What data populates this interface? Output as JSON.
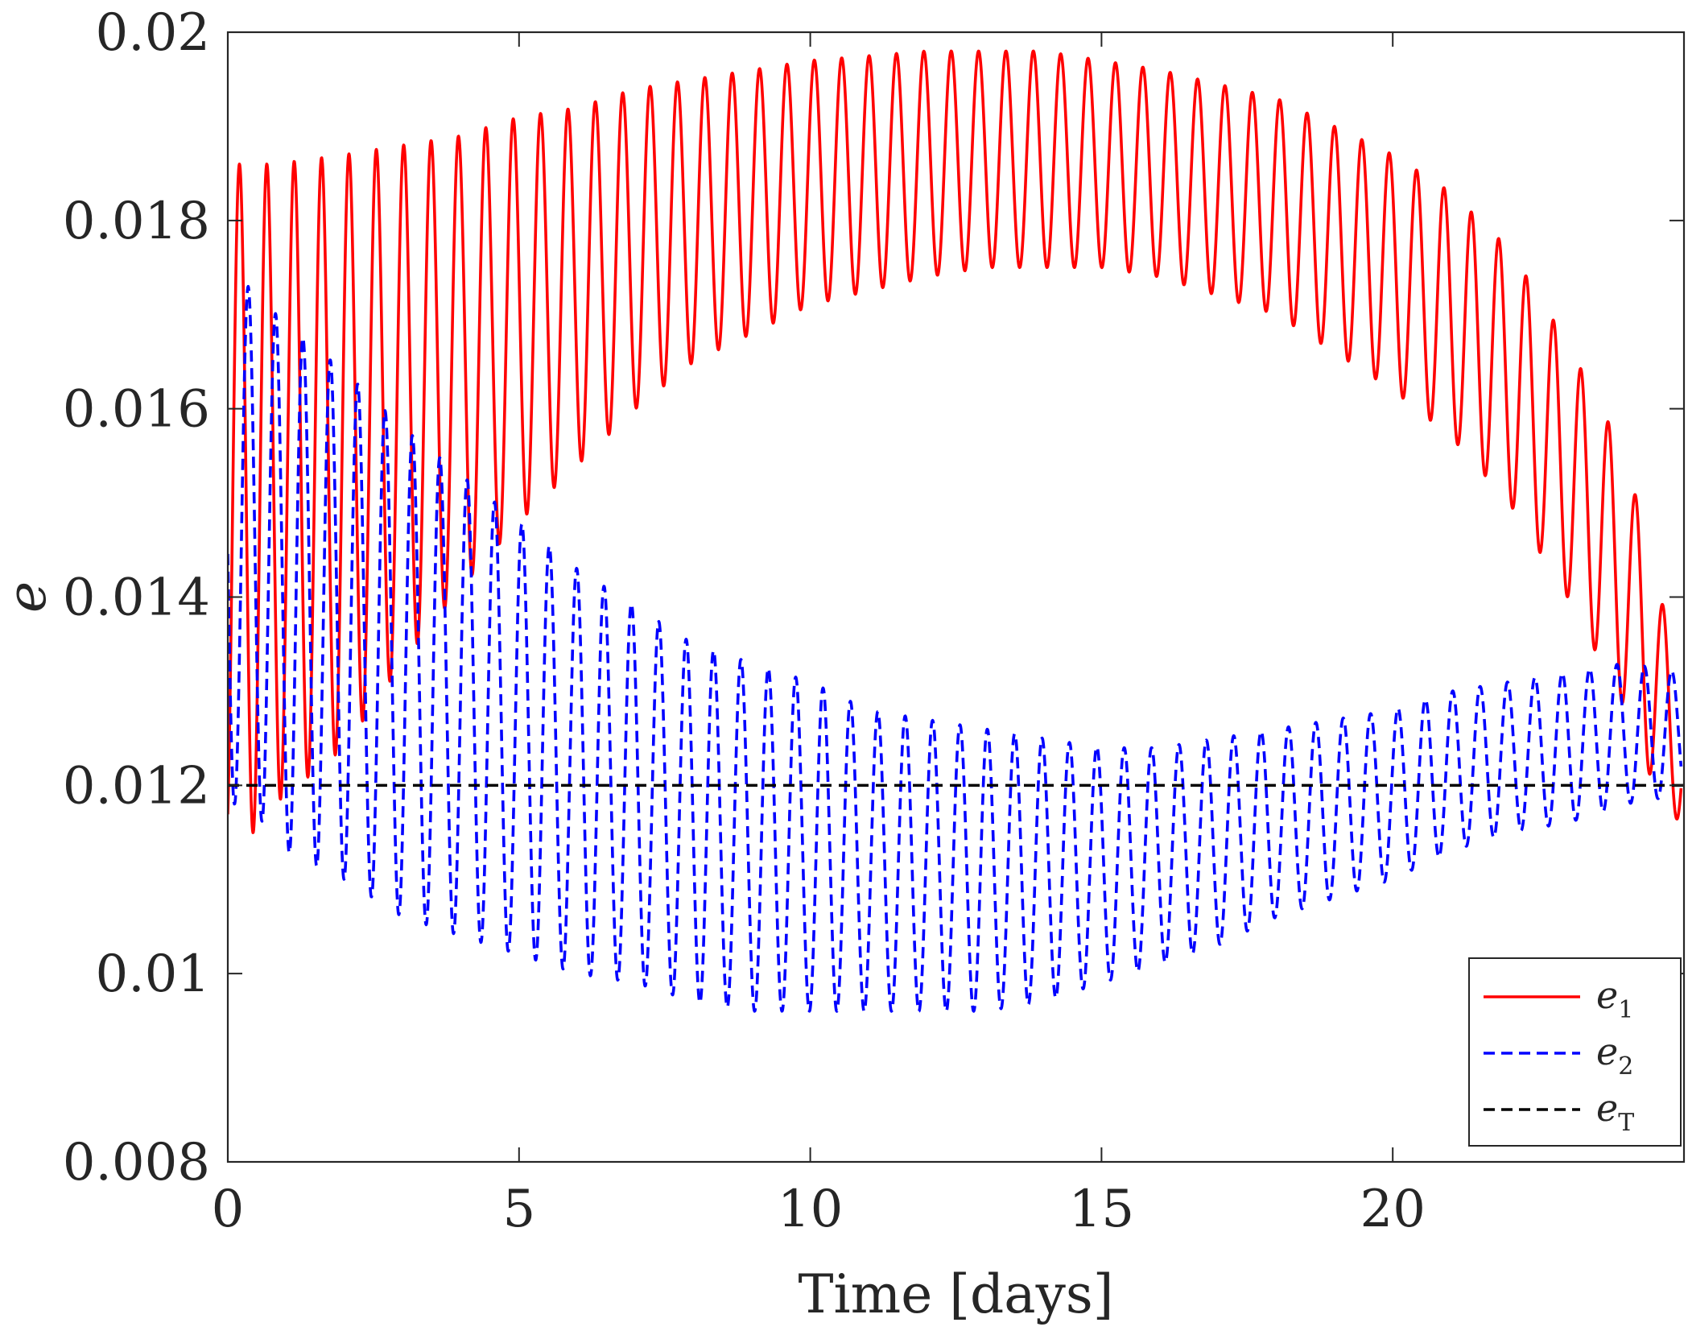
{
  "chart_data": {
    "type": "line",
    "title": "",
    "xlabel": "Time [days]",
    "ylabel": "e",
    "xlim": [
      0,
      25
    ],
    "ylim": [
      0.008,
      0.02
    ],
    "xticks": [
      0,
      5,
      10,
      15,
      20
    ],
    "xtick_labels": [
      "0",
      "5",
      "10",
      "15",
      "20"
    ],
    "yticks": [
      0.008,
      0.01,
      0.012,
      0.014,
      0.016,
      0.018,
      0.02
    ],
    "ytick_labels": [
      "0.008",
      "0.01",
      "0.012",
      "0.014",
      "0.016",
      "0.018",
      "0.02"
    ],
    "grid": false,
    "legend_position": "bottom-right",
    "colors": {
      "e1": "#ff0000",
      "e2": "#0000ff",
      "eT": "#000000",
      "axis": "#262626"
    },
    "series": [
      {
        "name": "e1",
        "legend_base": "e",
        "legend_sub": "1",
        "style": "solid",
        "description": "oscillation with ~0.47-day period between upper and lower envelopes",
        "t_start": 0,
        "t_end": 24.95,
        "period_days": 0.47,
        "envelope_time": [
          0.2,
          0.8,
          2,
          3,
          4,
          5,
          6,
          7,
          8,
          10,
          12,
          13,
          14,
          15,
          16,
          18,
          20,
          21,
          22,
          23,
          24,
          24.6,
          24.95
        ],
        "upper_envelope": [
          0.0186,
          0.0186,
          0.0187,
          0.0188,
          0.0189,
          0.0191,
          0.0192,
          0.0194,
          0.0195,
          0.0197,
          0.0198,
          0.0198,
          0.0198,
          0.0197,
          0.0196,
          0.0193,
          0.0187,
          0.0183,
          0.0177,
          0.0167,
          0.0155,
          0.014,
          0.0132
        ],
        "lower_envelope": [
          0.0113,
          0.0118,
          0.0124,
          0.0133,
          0.0141,
          0.0148,
          0.0154,
          0.016,
          0.0165,
          0.0171,
          0.0174,
          0.0175,
          0.0175,
          0.0175,
          0.0174,
          0.017,
          0.0162,
          0.0157,
          0.015,
          0.014,
          0.0128,
          0.0118,
          0.0116
        ]
      },
      {
        "name": "e2",
        "legend_base": "e",
        "legend_sub": "2",
        "style": "dashed",
        "description": "oscillation with ~0.47-day period between upper and lower envelopes",
        "t_start": 0,
        "t_end": 24.95,
        "period_days": 0.47,
        "envelope_time": [
          0.35,
          1,
          2,
          3,
          4,
          5,
          6,
          7,
          8,
          9,
          10,
          11,
          12,
          13,
          14,
          15,
          16,
          17,
          18,
          19,
          20,
          21,
          22,
          23,
          24,
          24.95
        ],
        "upper_envelope": [
          0.0173,
          0.0169,
          0.0164,
          0.0158,
          0.0153,
          0.0148,
          0.0143,
          0.0139,
          0.0135,
          0.0133,
          0.0131,
          0.0128,
          0.0127,
          0.0126,
          0.0125,
          0.0124,
          0.0124,
          0.0125,
          0.0126,
          0.0127,
          0.0128,
          0.013,
          0.0131,
          0.0132,
          0.0133,
          0.0132
        ],
        "lower_envelope": [
          0.0118,
          0.0113,
          0.011,
          0.0106,
          0.0104,
          0.0102,
          0.01,
          0.0099,
          0.0097,
          0.0096,
          0.0096,
          0.0096,
          0.0096,
          0.0096,
          0.0097,
          0.0099,
          0.0101,
          0.0103,
          0.0106,
          0.0108,
          0.011,
          0.0113,
          0.0115,
          0.0116,
          0.0118,
          0.0119
        ]
      },
      {
        "name": "eT",
        "legend_base": "e",
        "legend_sub": "T",
        "style": "dashed",
        "x": [
          0,
          25
        ],
        "y": [
          0.012,
          0.012
        ]
      }
    ]
  }
}
